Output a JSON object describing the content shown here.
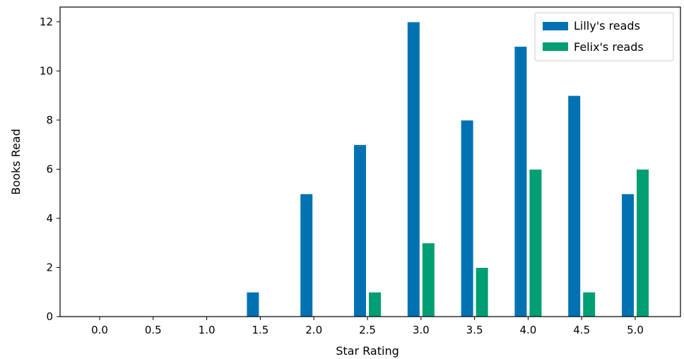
{
  "chart_data": {
    "type": "bar",
    "categories": [
      "0.0",
      "0.5",
      "1.0",
      "1.5",
      "2.0",
      "2.5",
      "3.0",
      "3.5",
      "4.0",
      "4.5",
      "5.0"
    ],
    "series": [
      {
        "name": "Lilly's reads",
        "color": "#0072B2",
        "values": [
          0,
          0,
          0,
          1,
          5,
          7,
          12,
          8,
          11,
          9,
          5
        ]
      },
      {
        "name": "Felix's reads",
        "color": "#009E73",
        "values": [
          0,
          0,
          0,
          0,
          0,
          1,
          3,
          2,
          6,
          1,
          6
        ]
      }
    ],
    "xlabel": "Star Rating",
    "ylabel": "Books Read",
    "ylim": [
      0,
      12.6
    ],
    "yticks": [
      "0",
      "2",
      "4",
      "6",
      "8",
      "10",
      "12"
    ],
    "legend_position": "top-right",
    "grid": false
  }
}
